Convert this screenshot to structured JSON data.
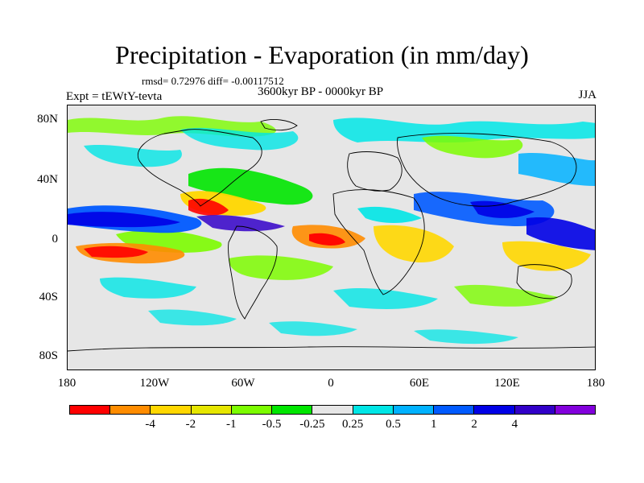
{
  "title": "Precipitation - Evaporation (in mm/day)",
  "stats": "rmsd= 0.72976 diff= -0.00117512",
  "left_label": "Expt = tEWtY-tevta",
  "center_label": "3600kyr BP - 0000kyr BP",
  "right_label": "JJA",
  "y_ticks": [
    "80N",
    "40N",
    "0",
    "40S",
    "80S"
  ],
  "x_ticks": [
    "180",
    "120W",
    "60W",
    "0",
    "60E",
    "120E",
    "180"
  ],
  "colorbar": {
    "colors": [
      "#ff0000",
      "#ff8c00",
      "#ffd700",
      "#e6e600",
      "#7cfc00",
      "#00e600",
      "#e6e6e6",
      "#00e6e6",
      "#00b2ff",
      "#005aff",
      "#0000e6",
      "#3200c8",
      "#8200dc"
    ],
    "labels": [
      "-4",
      "-2",
      "-1",
      "-0.5",
      "-0.25",
      "0.25",
      "0.5",
      "1",
      "2",
      "4"
    ]
  }
}
